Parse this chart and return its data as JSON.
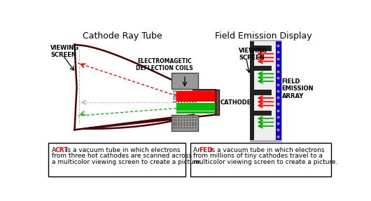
{
  "title_crt": "Cathode Ray Tube",
  "title_fed": "Field Emission Display",
  "label_viewing_screen_crt": "VIEWING\nSCREEN",
  "label_viewing_screen_fed": "VIEWING\nSCREEN",
  "label_deflection": "ELECTROMAGETIC\nDEFLECTION COILS",
  "label_cathode": "CATHODE",
  "label_field_emission": "FIELD\nEMISSION\nARRAY",
  "crt_text_1a": "A ",
  "crt_text_1b": "CRT",
  "crt_text_1c": " is a vacuum tube in which electrons",
  "crt_text_2": "from three hot cathodes are scanned across",
  "crt_text_3": "a multicolor viewing screen to create a picture.",
  "fed_text_1a": "An ",
  "fed_text_1b": "FED",
  "fed_text_1c": " is a vacuum tube in which electrons",
  "fed_text_2": "from millions of tiny cathodes travel to a",
  "fed_text_3": "multicolor viewing screen to create a picture.",
  "bg_color": "#ffffff",
  "crt_body_color": "#4d0000",
  "crt_fill_color": "#ffffff",
  "gray_coil": "#888888",
  "gray_cathode_bg": "#cccccc",
  "red_beam": "#ff0000",
  "green_beam": "#00aa00",
  "gray_beam": "#aaaaaa",
  "blue_fed": "#0000ff",
  "dark_fed": "#111111",
  "fed_bg": "#cccccc",
  "text_box_edge": "#000000",
  "text_box_fill": "#ffffff",
  "crt_label_color": "#000000",
  "highlight_color": "#ff0000"
}
